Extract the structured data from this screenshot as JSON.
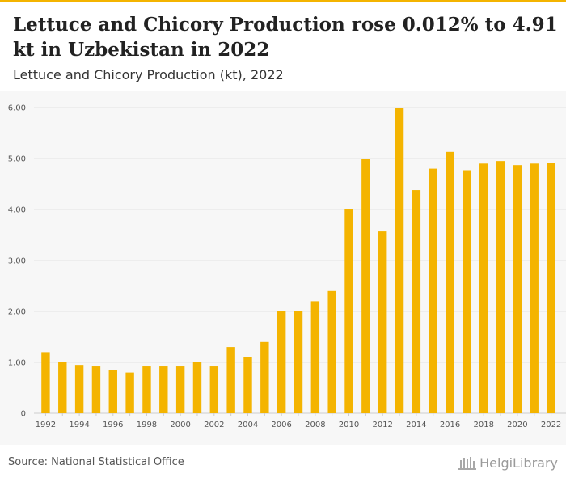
{
  "header": {
    "title": "Lettuce and Chicory Production rose 0.012% to 4.91 kt in Uzbekistan in 2022",
    "subtitle": "Lettuce and Chicory Production (kt), 2022"
  },
  "footer": {
    "source": "Source: National Statistical Office",
    "logo_text": "HelgiLibrary",
    "logo_icon": "building-icon"
  },
  "colors": {
    "bar": "#f4b400",
    "accent": "#f4b400",
    "grid": "#e3e3e3",
    "tick_text": "#555555"
  },
  "chart_data": {
    "type": "bar",
    "title": "",
    "xlabel": "",
    "ylabel": "",
    "ylim": [
      0,
      6
    ],
    "yticks": [
      "0",
      "1.00",
      "2.00",
      "3.00",
      "4.00",
      "5.00",
      "6.00"
    ],
    "grid": true,
    "x_tick_labels": [
      "1992",
      "1994",
      "1996",
      "1998",
      "2000",
      "2002",
      "2004",
      "2006",
      "2008",
      "2010",
      "2012",
      "2014",
      "2016",
      "2018",
      "2020",
      "2022"
    ],
    "categories": [
      "1992",
      "1993",
      "1994",
      "1995",
      "1996",
      "1997",
      "1998",
      "1999",
      "2000",
      "2001",
      "2002",
      "2003",
      "2004",
      "2005",
      "2006",
      "2007",
      "2008",
      "2009",
      "2010",
      "2011",
      "2012",
      "2013",
      "2014",
      "2015",
      "2016",
      "2017",
      "2018",
      "2019",
      "2020",
      "2021",
      "2022"
    ],
    "values": [
      1.2,
      1.0,
      0.95,
      0.92,
      0.85,
      0.8,
      0.92,
      0.92,
      0.92,
      1.0,
      0.92,
      1.3,
      1.1,
      1.4,
      2.0,
      2.0,
      2.2,
      2.4,
      4.0,
      5.0,
      3.57,
      6.0,
      4.38,
      4.8,
      5.13,
      4.77,
      4.9,
      4.95,
      4.87,
      4.9,
      4.91
    ]
  }
}
